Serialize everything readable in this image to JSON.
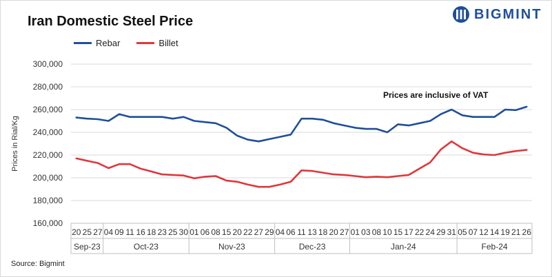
{
  "brand": {
    "name": "BIGMINT"
  },
  "source": "Source: Bigmint",
  "chart_data": {
    "type": "line",
    "title": "Iran Domestic Steel Price",
    "ylabel": "Prices in Rial/Kg",
    "xlabel": "",
    "ylim": [
      160000,
      300000
    ],
    "yticks": [
      160000,
      180000,
      200000,
      220000,
      240000,
      260000,
      280000,
      300000
    ],
    "ytick_labels": [
      "160,000",
      "180,000",
      "200,000",
      "220,000",
      "240,000",
      "260,000",
      "280,000",
      "300,000"
    ],
    "annotation": "Prices are inclusive  of VAT",
    "categories": [
      "20",
      "25",
      "27",
      "04",
      "09",
      "11",
      "16",
      "18",
      "23",
      "25",
      "30",
      "01",
      "06",
      "08",
      "15",
      "20",
      "22",
      "27",
      "29",
      "04",
      "06",
      "11",
      "13",
      "18",
      "20",
      "27",
      "01",
      "03",
      "08",
      "10",
      "15",
      "17",
      "22",
      "24",
      "29",
      "31",
      "05",
      "07",
      "12",
      "14",
      "19",
      "21",
      "26"
    ],
    "months": [
      {
        "label": "Sep-23",
        "start": 0,
        "end": 2
      },
      {
        "label": "Oct-23",
        "start": 3,
        "end": 10
      },
      {
        "label": "Nov-23",
        "start": 11,
        "end": 18
      },
      {
        "label": "Dec-23",
        "start": 19,
        "end": 25
      },
      {
        "label": "Jan-24",
        "start": 26,
        "end": 35
      },
      {
        "label": "Feb-24",
        "start": 36,
        "end": 42
      }
    ],
    "series": [
      {
        "name": "Rebar",
        "color": "#1f4e9c",
        "values": [
          253000,
          252000,
          251500,
          250000,
          256000,
          253500,
          253500,
          253500,
          253500,
          252000,
          253500,
          250000,
          249000,
          248000,
          244000,
          237000,
          233500,
          232000,
          234000,
          236000,
          238000,
          252000,
          252000,
          251000,
          248000,
          246000,
          244000,
          243000,
          243000,
          240000,
          247000,
          246000,
          248000,
          250000,
          256000,
          260000,
          255000,
          253500,
          253500,
          253500,
          260000,
          259500,
          262500
        ]
      },
      {
        "name": "Billet",
        "color": "#e0363a",
        "values": [
          217000,
          215000,
          213000,
          208500,
          212000,
          212000,
          208000,
          205500,
          203000,
          202500,
          202000,
          199500,
          201000,
          201500,
          197500,
          196500,
          194000,
          192000,
          192000,
          194000,
          196500,
          206500,
          206000,
          204500,
          203000,
          202500,
          201500,
          200500,
          201000,
          200500,
          201500,
          202500,
          208000,
          213500,
          225000,
          232000,
          226000,
          222000,
          220500,
          220000,
          222000,
          223500,
          224500
        ]
      }
    ]
  }
}
